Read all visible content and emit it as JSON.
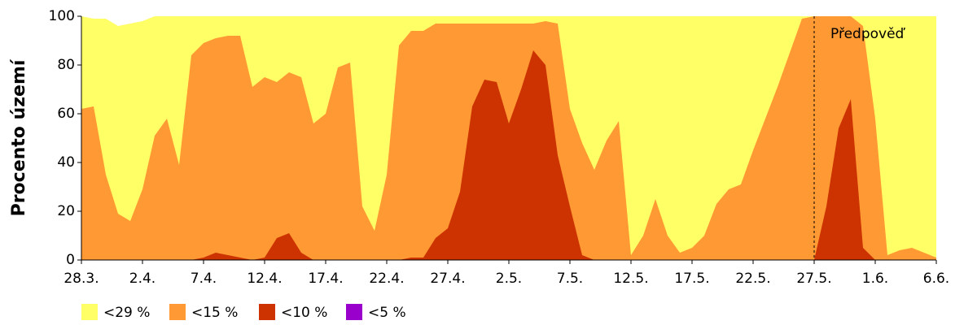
{
  "chart_data": {
    "type": "area",
    "ylabel": "Procento území",
    "categories": [
      "28.3.",
      null,
      null,
      null,
      null,
      "2.4.",
      null,
      null,
      null,
      null,
      "7.4.",
      null,
      null,
      null,
      null,
      "12.4.",
      null,
      null,
      null,
      null,
      "17.4.",
      null,
      null,
      null,
      null,
      "22.4.",
      null,
      null,
      null,
      null,
      "27.4.",
      null,
      null,
      null,
      null,
      "2.5.",
      null,
      null,
      null,
      null,
      "7.5.",
      null,
      null,
      null,
      null,
      "12.5.",
      null,
      null,
      null,
      null,
      "17.5.",
      null,
      null,
      null,
      null,
      "22.5.",
      null,
      null,
      null,
      null,
      "27.5.",
      null,
      null,
      null,
      null,
      "1.6.",
      null,
      null,
      null,
      null,
      "6.6."
    ],
    "series": [
      {
        "name": "<29 %",
        "color": "#ffff66",
        "values": [
          100,
          99,
          99,
          96,
          97,
          98,
          100,
          100,
          100,
          100,
          100,
          100,
          100,
          100,
          100,
          100,
          100,
          100,
          100,
          100,
          100,
          100,
          100,
          100,
          100,
          100,
          100,
          100,
          100,
          100,
          100,
          100,
          100,
          100,
          100,
          100,
          100,
          100,
          100,
          100,
          100,
          100,
          100,
          100,
          100,
          100,
          100,
          100,
          100,
          100,
          100,
          100,
          100,
          100,
          100,
          100,
          100,
          100,
          100,
          100,
          100,
          100,
          100,
          100,
          100,
          100,
          100,
          100,
          100,
          100,
          100
        ]
      },
      {
        "name": "<15 %",
        "color": "#ff9933",
        "values": [
          62,
          63,
          35,
          19,
          16,
          29,
          51,
          58,
          39,
          84,
          89,
          91,
          92,
          92,
          71,
          75,
          73,
          77,
          75,
          56,
          60,
          79,
          81,
          22,
          12,
          35,
          88,
          94,
          94,
          97,
          97,
          97,
          97,
          97,
          97,
          97,
          97,
          97,
          98,
          97,
          62,
          48,
          37,
          49,
          57,
          2,
          10,
          25,
          10,
          3,
          5,
          10,
          23,
          29,
          31,
          45,
          58,
          71,
          85,
          99,
          100,
          100,
          100,
          100,
          96,
          58,
          2,
          4,
          5,
          3,
          1
        ]
      },
      {
        "name": "<10 %",
        "color": "#cc3300",
        "values": [
          0,
          0,
          0,
          0,
          0,
          0,
          0,
          0,
          0,
          0,
          1,
          3,
          2,
          1,
          0,
          1,
          9,
          11,
          3,
          0,
          0,
          0,
          0,
          0,
          0,
          0,
          0,
          1,
          1,
          9,
          13,
          28,
          63,
          74,
          73,
          56,
          70,
          86,
          80,
          43,
          22,
          2,
          0,
          0,
          0,
          0,
          0,
          0,
          0,
          0,
          0,
          0,
          0,
          0,
          0,
          0,
          0,
          0,
          0,
          0,
          0,
          22,
          54,
          66,
          5,
          0,
          0,
          0,
          0,
          0,
          0
        ]
      },
      {
        "name": "<5 %",
        "color": "#9900cc",
        "values": [
          0,
          0,
          0,
          0,
          0,
          0,
          0,
          0,
          0,
          0,
          0,
          0,
          0,
          0,
          0,
          0,
          0,
          0,
          0,
          0,
          0,
          0,
          0,
          0,
          0,
          0,
          0,
          0,
          0,
          0,
          0,
          0,
          0,
          0,
          0,
          0,
          0,
          0,
          0,
          0,
          0,
          0,
          0,
          0,
          0,
          0,
          0,
          0,
          0,
          0,
          0,
          0,
          0,
          0,
          0,
          0,
          0,
          0,
          0,
          0,
          0,
          0,
          0,
          0,
          0,
          0,
          0,
          0,
          0,
          0,
          0
        ]
      }
    ],
    "ylim": [
      0,
      100
    ],
    "yticks": [
      0,
      20,
      40,
      60,
      80,
      100
    ],
    "annotation": {
      "text": "Předpověď",
      "x": "27.5."
    },
    "legend": "bottom"
  }
}
